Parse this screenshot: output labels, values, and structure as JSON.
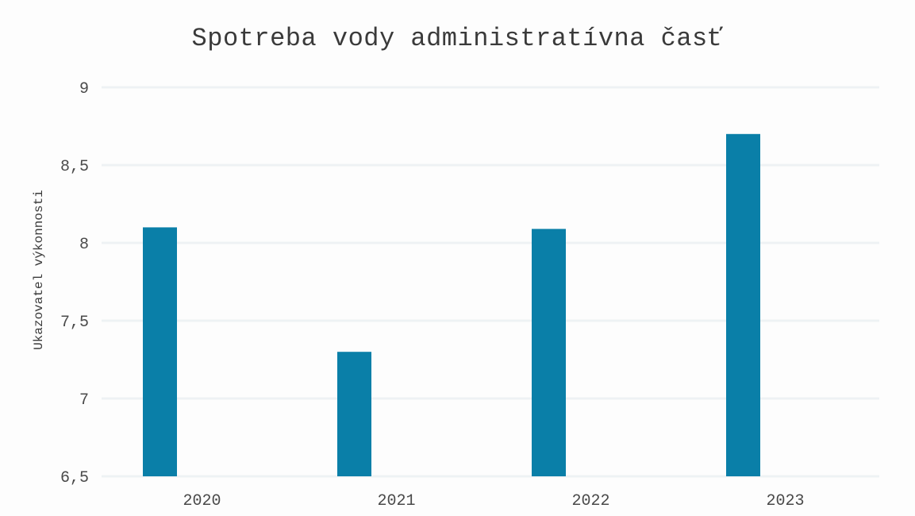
{
  "chart_data": {
    "type": "bar",
    "title": "Spotreba vody administratívna časť",
    "xlabel": "",
    "ylabel": "Ukazovatel výkonnosti",
    "categories": [
      "2020",
      "2021",
      "2022",
      "2023"
    ],
    "values": [
      8.1,
      7.3,
      8.09,
      8.7
    ],
    "ylim": [
      6.5,
      9
    ],
    "yticks": [
      6.5,
      7,
      7.5,
      8,
      8.5,
      9
    ],
    "ytick_labels": [
      "6,5",
      "7",
      "7,5",
      "8",
      "8,5",
      "9"
    ],
    "grid": true,
    "legend": "none",
    "bar_color": "#0a7fa8",
    "grid_color": "#eef2f4"
  }
}
